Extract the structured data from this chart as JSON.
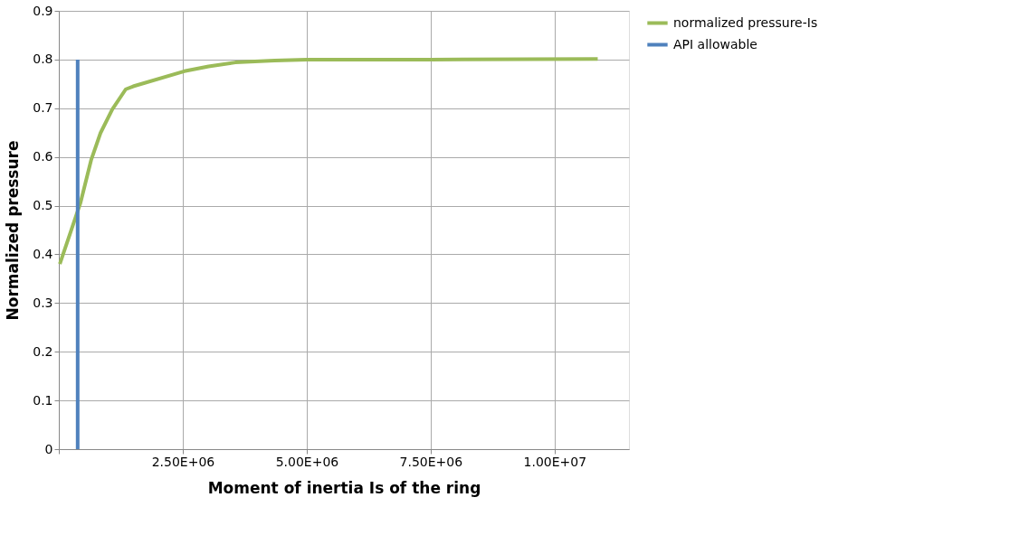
{
  "chart_data": {
    "type": "line",
    "xlabel": "Moment of inertia Is of the ring",
    "ylabel": "Normalized pressure",
    "xlim": [
      0,
      11500000
    ],
    "ylim": [
      0,
      0.9
    ],
    "xticks": [
      {
        "value": 0,
        "label": null
      },
      {
        "value": 2500000,
        "label": "2.50E+06"
      },
      {
        "value": 5000000,
        "label": "5.00E+06"
      },
      {
        "value": 7500000,
        "label": "7.50E+06"
      },
      {
        "value": 10000000,
        "label": "1.00E+07"
      }
    ],
    "yticks": [
      0,
      0.1,
      0.2,
      0.3,
      0.4,
      0.5,
      0.6,
      0.7,
      0.8,
      0.9
    ],
    "grid": true,
    "legend": "right",
    "marker": "none",
    "line_style": "solid",
    "series": [
      {
        "name": "normalized pressure-Is",
        "color": "#9bbb59",
        "x": [
          20000,
          440000,
          650000,
          840000,
          1080000,
          1350000,
          1500000,
          2530000,
          3020000,
          3560000,
          4350000,
          5000000,
          7500000,
          10870000
        ],
        "values": [
          0.38,
          0.507,
          0.593,
          0.649,
          0.698,
          0.739,
          0.745,
          0.776,
          0.786,
          0.794,
          0.798,
          0.8,
          0.8,
          0.801
        ]
      },
      {
        "name": "API allowable",
        "color": "#4f81bd",
        "x": [
          380000,
          380000
        ],
        "values": [
          0,
          0.8
        ]
      }
    ]
  }
}
